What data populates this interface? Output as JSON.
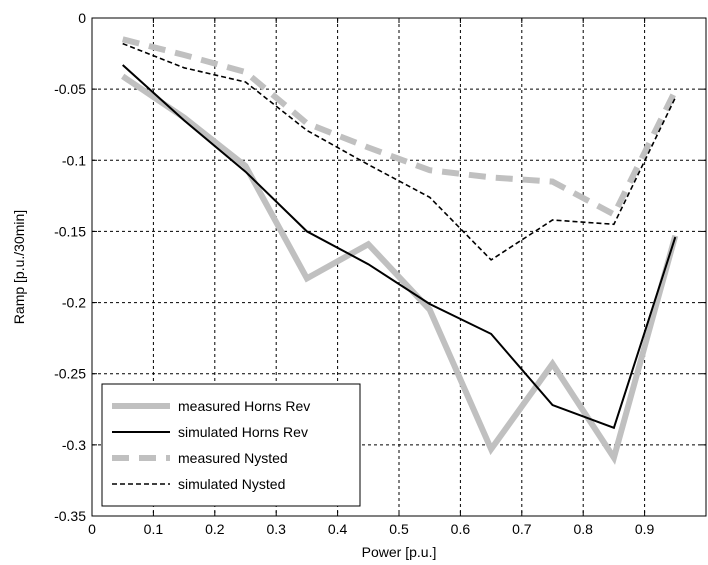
{
  "chart_data": {
    "type": "line",
    "xlabel": "Power [p.u.]",
    "ylabel": "Ramp [p.u./30min]",
    "xlim": [
      0,
      1
    ],
    "ylim": [
      -0.35,
      0
    ],
    "grid": true,
    "legend_position": "bottom-left",
    "x_ticks": [
      "0",
      "0.1",
      "0.2",
      "0.3",
      "0.4",
      "0.5",
      "0.6",
      "0.7",
      "0.8",
      "0.9"
    ],
    "y_ticks": [
      "0",
      "-0.05",
      "-0.1",
      "-0.15",
      "-0.2",
      "-0.25",
      "-0.3",
      "-0.35"
    ],
    "x": [
      0.05,
      0.15,
      0.25,
      0.35,
      0.45,
      0.55,
      0.65,
      0.75,
      0.85,
      0.95
    ],
    "series": [
      {
        "name": "measured Horns Rev",
        "color": "#c0c0c0",
        "style": "solid-thick",
        "values": [
          -0.041,
          -0.07,
          -0.104,
          -0.183,
          -0.159,
          -0.205,
          -0.303,
          -0.243,
          -0.309,
          -0.153
        ]
      },
      {
        "name": "simulated Horns Rev",
        "color": "#000000",
        "style": "solid",
        "values": [
          -0.033,
          -0.072,
          -0.108,
          -0.15,
          -0.173,
          -0.201,
          -0.222,
          -0.272,
          -0.288,
          -0.154
        ]
      },
      {
        "name": "measured Nysted",
        "color": "#c0c0c0",
        "style": "dashed-thick",
        "values": [
          -0.015,
          -0.026,
          -0.038,
          -0.074,
          -0.091,
          -0.107,
          -0.112,
          -0.115,
          -0.138,
          -0.051
        ]
      },
      {
        "name": "simulated Nysted",
        "color": "#000000",
        "style": "dashed",
        "values": [
          -0.018,
          -0.035,
          -0.045,
          -0.079,
          -0.103,
          -0.126,
          -0.17,
          -0.142,
          -0.145,
          -0.056
        ]
      }
    ]
  }
}
